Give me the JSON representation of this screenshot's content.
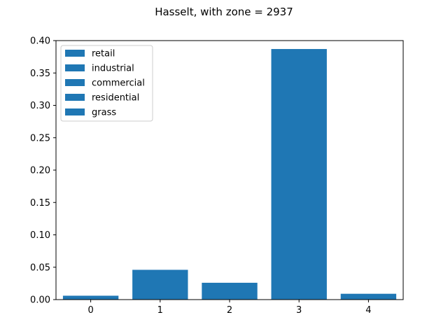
{
  "chart_data": {
    "type": "bar",
    "title": "Hasselt, with zone = 2937",
    "xlabel": "",
    "ylabel": "",
    "categories": [
      "0",
      "1",
      "2",
      "3",
      "4"
    ],
    "x": [
      0,
      1,
      2,
      3,
      4
    ],
    "values": [
      0.006,
      0.046,
      0.026,
      0.387,
      0.009
    ],
    "xlim": [
      -0.5,
      4.5
    ],
    "ylim": [
      0,
      0.4
    ],
    "yticks": [
      "0.00",
      "0.05",
      "0.10",
      "0.15",
      "0.20",
      "0.25",
      "0.30",
      "0.35",
      "0.40"
    ],
    "grid": false,
    "legend": {
      "placement": "top-left",
      "entries": [
        "retail",
        "industrial",
        "commercial",
        "residential",
        "grass"
      ]
    },
    "colors": {
      "bar": "#1f77b4"
    }
  }
}
